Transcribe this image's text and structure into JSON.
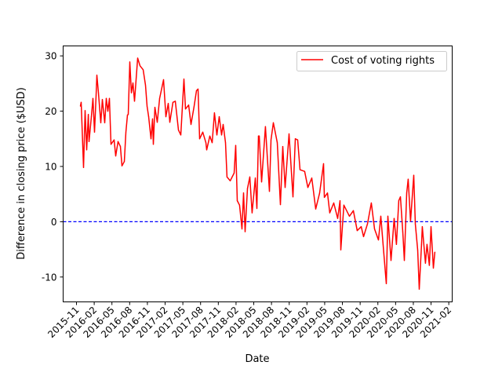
{
  "chart_data": {
    "type": "line",
    "title": "",
    "xlabel": "Date",
    "ylabel": "Difference in closing price ($USD)",
    "x_units": "decimal year",
    "xlim": [
      2015.645,
      2021.131
    ],
    "ylim": [
      -14.5,
      31.8
    ],
    "grid": false,
    "legend": {
      "placement": "top-right",
      "entries": [
        "Cost of voting rights"
      ]
    },
    "colors": {
      "series": "#ff0000",
      "reference": "#0000ff"
    },
    "yticks": [
      -10,
      0,
      10,
      20,
      30
    ],
    "xticks": [
      {
        "value": 2015.833,
        "label": "2015-11"
      },
      {
        "value": 2016.083,
        "label": "2016-02"
      },
      {
        "value": 2016.333,
        "label": "2016-05"
      },
      {
        "value": 2016.583,
        "label": "2016-08"
      },
      {
        "value": 2016.833,
        "label": "2016-11"
      },
      {
        "value": 2017.083,
        "label": "2017-02"
      },
      {
        "value": 2017.333,
        "label": "2017-05"
      },
      {
        "value": 2017.583,
        "label": "2017-08"
      },
      {
        "value": 2017.833,
        "label": "2017-11"
      },
      {
        "value": 2018.083,
        "label": "2018-02"
      },
      {
        "value": 2018.333,
        "label": "2018-05"
      },
      {
        "value": 2018.583,
        "label": "2018-08"
      },
      {
        "value": 2018.833,
        "label": "2018-11"
      },
      {
        "value": 2019.083,
        "label": "2019-02"
      },
      {
        "value": 2019.333,
        "label": "2019-05"
      },
      {
        "value": 2019.583,
        "label": "2019-08"
      },
      {
        "value": 2019.833,
        "label": "2019-11"
      },
      {
        "value": 2020.083,
        "label": "2020-02"
      },
      {
        "value": 2020.333,
        "label": "2020-05"
      },
      {
        "value": 2020.583,
        "label": "2020-08"
      },
      {
        "value": 2020.833,
        "label": "2020-11"
      },
      {
        "value": 2021.083,
        "label": "2021-02"
      }
    ],
    "reference_line": {
      "y": 0,
      "style": "dashed"
    },
    "series": [
      {
        "name": "Cost of voting rights",
        "x": [
          2015.888,
          2015.899,
          2015.933,
          2015.955,
          2015.977,
          2016.0,
          2016.01,
          2016.043,
          2016.065,
          2016.087,
          2016.11,
          2016.121,
          2016.143,
          2016.176,
          2016.198,
          2016.231,
          2016.253,
          2016.275,
          2016.298,
          2016.32,
          2016.364,
          2016.386,
          2016.419,
          2016.452,
          2016.474,
          2016.508,
          2016.53,
          2016.552,
          2016.563,
          2016.585,
          2016.607,
          2016.629,
          2016.651,
          2016.696,
          2016.729,
          2016.773,
          2016.806,
          2016.828,
          2016.851,
          2016.884,
          2016.906,
          2016.917,
          2016.939,
          2016.972,
          2017.005,
          2017.061,
          2017.094,
          2017.127,
          2017.149,
          2017.193,
          2017.227,
          2017.271,
          2017.304,
          2017.348,
          2017.37,
          2017.415,
          2017.448,
          2017.492,
          2017.525,
          2017.547,
          2017.569,
          2017.614,
          2017.658,
          2017.669,
          2017.713,
          2017.746,
          2017.779,
          2017.813,
          2017.846,
          2017.879,
          2017.901,
          2017.934,
          2017.956,
          2018.001,
          2018.056,
          2018.078,
          2018.1,
          2018.133,
          2018.167,
          2018.189,
          2018.211,
          2018.244,
          2018.277,
          2018.31,
          2018.355,
          2018.377,
          2018.399,
          2018.41,
          2018.443,
          2018.498,
          2018.554,
          2018.576,
          2018.609,
          2018.664,
          2018.709,
          2018.742,
          2018.775,
          2018.83,
          2018.886,
          2018.919,
          2018.952,
          2018.985,
          2019.051,
          2019.096,
          2019.151,
          2019.206,
          2019.262,
          2019.317,
          2019.328,
          2019.372,
          2019.405,
          2019.461,
          2019.516,
          2019.549,
          2019.56,
          2019.604,
          2019.682,
          2019.737,
          2019.792,
          2019.848,
          2019.881,
          2019.936,
          2019.991,
          2020.036,
          2020.091,
          2020.124,
          2020.157,
          2020.202,
          2020.224,
          2020.268,
          2020.312,
          2020.345,
          2020.378,
          2020.401,
          2020.434,
          2020.456,
          2020.489,
          2020.511,
          2020.544,
          2020.589,
          2020.611,
          2020.644,
          2020.666,
          2020.699,
          2020.71,
          2020.754,
          2020.776,
          2020.809,
          2020.832,
          2020.865,
          2020.887
        ],
        "y": [
          20.9,
          21.6,
          9.8,
          20.1,
          13.0,
          19.4,
          14.5,
          19.0,
          22.3,
          16.2,
          22.8,
          26.5,
          23.3,
          17.9,
          22.1,
          17.9,
          22.3,
          20.0,
          22.3,
          14.0,
          14.8,
          11.9,
          14.5,
          13.6,
          10.1,
          10.9,
          16.2,
          19.3,
          19.4,
          28.9,
          23.3,
          25.1,
          21.8,
          29.6,
          28.2,
          27.5,
          24.7,
          20.9,
          19.0,
          15.0,
          18.6,
          14.0,
          20.7,
          18.0,
          22.3,
          25.7,
          19.0,
          21.4,
          18.0,
          21.6,
          21.8,
          16.6,
          15.7,
          25.8,
          20.4,
          21.1,
          17.6,
          20.9,
          23.7,
          24.0,
          15.0,
          16.2,
          14.3,
          13.0,
          15.5,
          14.3,
          19.7,
          15.7,
          19.0,
          15.7,
          17.6,
          14.3,
          8.1,
          7.4,
          8.8,
          13.8,
          3.8,
          3.0,
          -1.3,
          5.2,
          -1.8,
          6.0,
          8.1,
          1.6,
          7.9,
          2.4,
          15.5,
          15.5,
          7.2,
          17.2,
          5.5,
          14.8,
          17.9,
          14.3,
          3.1,
          13.6,
          6.2,
          15.9,
          4.5,
          15.0,
          14.8,
          9.4,
          9.1,
          6.2,
          7.9,
          2.3,
          5.2,
          10.5,
          4.4,
          5.2,
          1.6,
          3.4,
          0.6,
          3.8,
          -5.1,
          3.0,
          1.0,
          2.0,
          -1.6,
          -0.9,
          -2.7,
          -0.4,
          3.4,
          -1.3,
          -3.3,
          1.0,
          -4.1,
          -11.2,
          1.0,
          -7.0,
          0.6,
          -4.1,
          3.8,
          4.5,
          -1.8,
          -7.0,
          5.2,
          7.7,
          0.1,
          8.4,
          -0.4,
          -5.1,
          -12.2,
          -4.1,
          -0.9,
          -7.5,
          -4.1,
          -7.9,
          -0.9,
          -8.4,
          -5.5
        ]
      }
    ]
  }
}
